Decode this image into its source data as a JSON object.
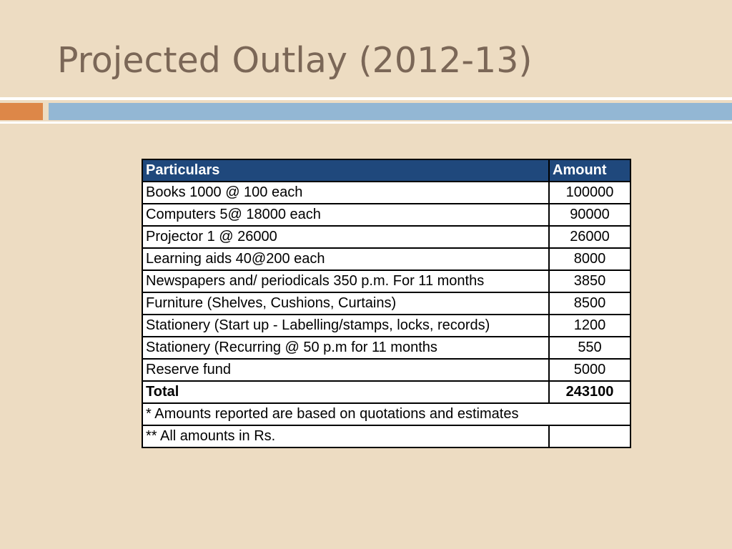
{
  "slide": {
    "title": "Projected Outlay (2012-13)"
  },
  "colors": {
    "background": "#eddcc2",
    "title": "#7b6757",
    "accent_orange": "#dd8748",
    "accent_blue": "#93b7d4",
    "header_fill": "#1f487c"
  },
  "table": {
    "headers": {
      "particulars": "Particulars",
      "amount": "Amount"
    },
    "rows": [
      {
        "particulars": "Books 1000 @  100 each",
        "amount": "100000"
      },
      {
        "particulars": "Computers 5@  18000 each",
        "amount": "90000"
      },
      {
        "particulars": "Projector 1 @ 26000",
        "amount": "26000"
      },
      {
        "particulars": "Learning aids 40@200 each",
        "amount": "8000"
      },
      {
        "particulars": "Newspapers and/ periodicals 350 p.m. For 11 months",
        "amount": "3850"
      },
      {
        "particulars": "Furniture (Shelves, Cushions, Curtains)",
        "amount": "8500"
      },
      {
        "particulars": "Stationery (Start up - Labelling/stamps, locks, records)",
        "amount": "1200"
      },
      {
        "particulars": "Stationery (Recurring @ 50 p.m for 11 months",
        "amount": "550"
      },
      {
        "particulars": "Reserve fund",
        "amount": "5000"
      }
    ],
    "total": {
      "label": "Total",
      "amount": "243100"
    },
    "notes": {
      "quotations": "* Amounts reported are based on quotations and estimates",
      "currency": "** All amounts in Rs."
    }
  }
}
